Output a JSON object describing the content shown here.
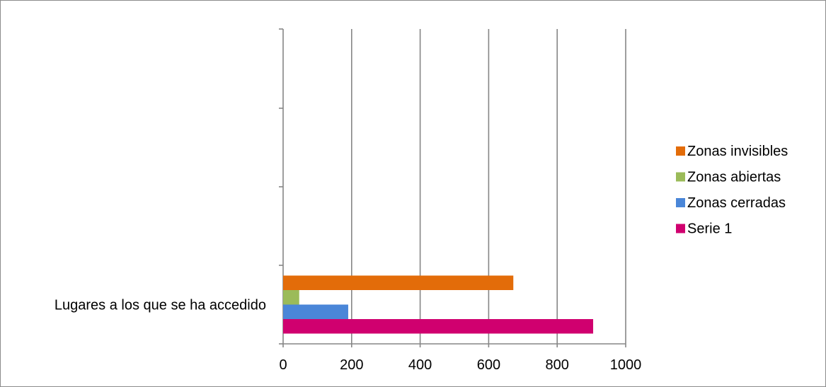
{
  "chart_data": {
    "type": "bar",
    "orientation": "horizontal",
    "categories": [
      "Lugares a los que se ha accedido"
    ],
    "series": [
      {
        "name": "Serie 1",
        "values": [
          905
        ],
        "color": "#D0006F"
      },
      {
        "name": "Zonas cerradas",
        "values": [
          190
        ],
        "color": "#4A86D8"
      },
      {
        "name": "Zonas abiertas",
        "values": [
          47
        ],
        "color": "#9BBB59"
      },
      {
        "name": "Zonas invisibles",
        "values": [
          672
        ],
        "color": "#E36C09"
      }
    ],
    "xlim": [
      0,
      1000
    ],
    "xticks": [
      "0",
      "200",
      "400",
      "600",
      "800",
      "1000"
    ],
    "grid": true,
    "legend_position": "right",
    "title": "",
    "xlabel": "",
    "ylabel": ""
  }
}
